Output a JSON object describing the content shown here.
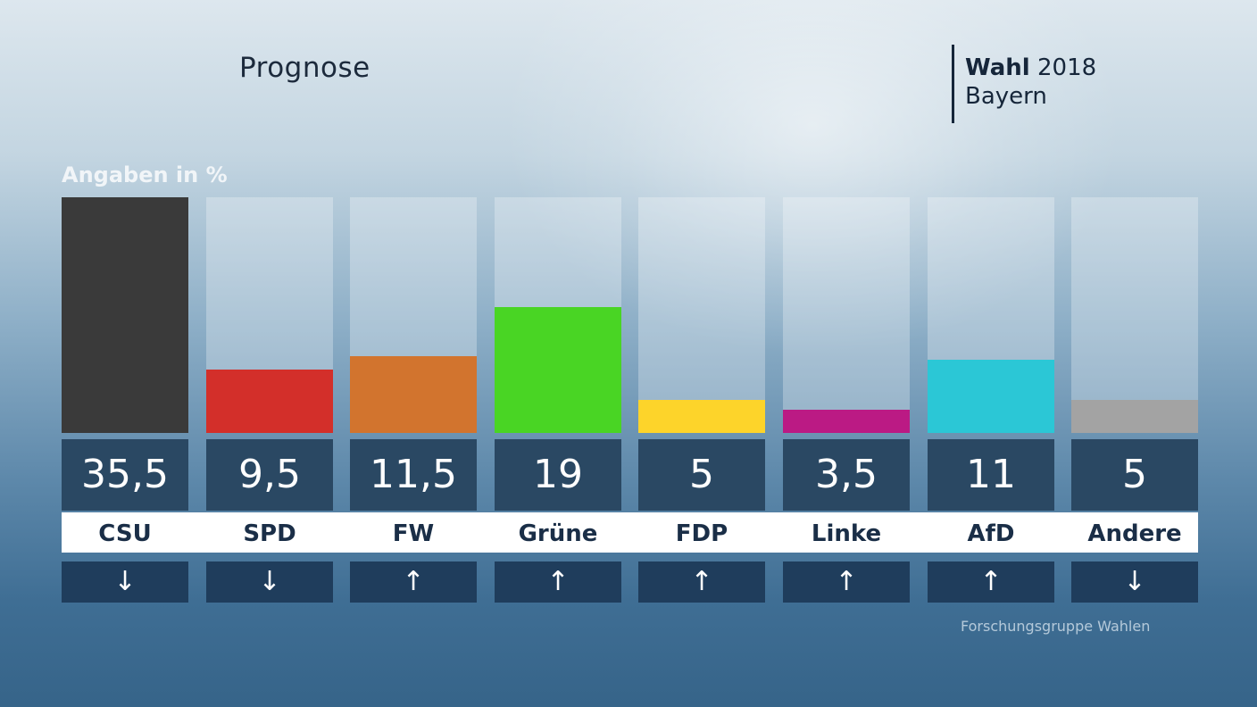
{
  "heading": "Prognose",
  "brand": {
    "bold": "Wahl",
    "year": "2018",
    "region": "Bayern"
  },
  "unit_label": "Angaben in %",
  "source": "Forschungsgruppe Wahlen",
  "chart_data": {
    "type": "bar",
    "title": "Prognose",
    "ylabel": "Angaben in %",
    "ylim": [
      0,
      35.5
    ],
    "categories": [
      "CSU",
      "SPD",
      "FW",
      "Grüne",
      "FDP",
      "Linke",
      "AfD",
      "Andere"
    ],
    "values": [
      35.5,
      9.5,
      11.5,
      19,
      5,
      3.5,
      11,
      5
    ],
    "value_labels": [
      "35,5",
      "9,5",
      "11,5",
      "19",
      "5",
      "3,5",
      "11",
      "5"
    ],
    "colors": [
      "#3a3a3a",
      "#d32f2a",
      "#d2742e",
      "#49d524",
      "#fdd42a",
      "#bb1a84",
      "#2bc7d6",
      "#a3a3a3"
    ],
    "trends": [
      "↓",
      "↓",
      "↑",
      "↑",
      "↑",
      "↑",
      "↑",
      "↓"
    ]
  }
}
